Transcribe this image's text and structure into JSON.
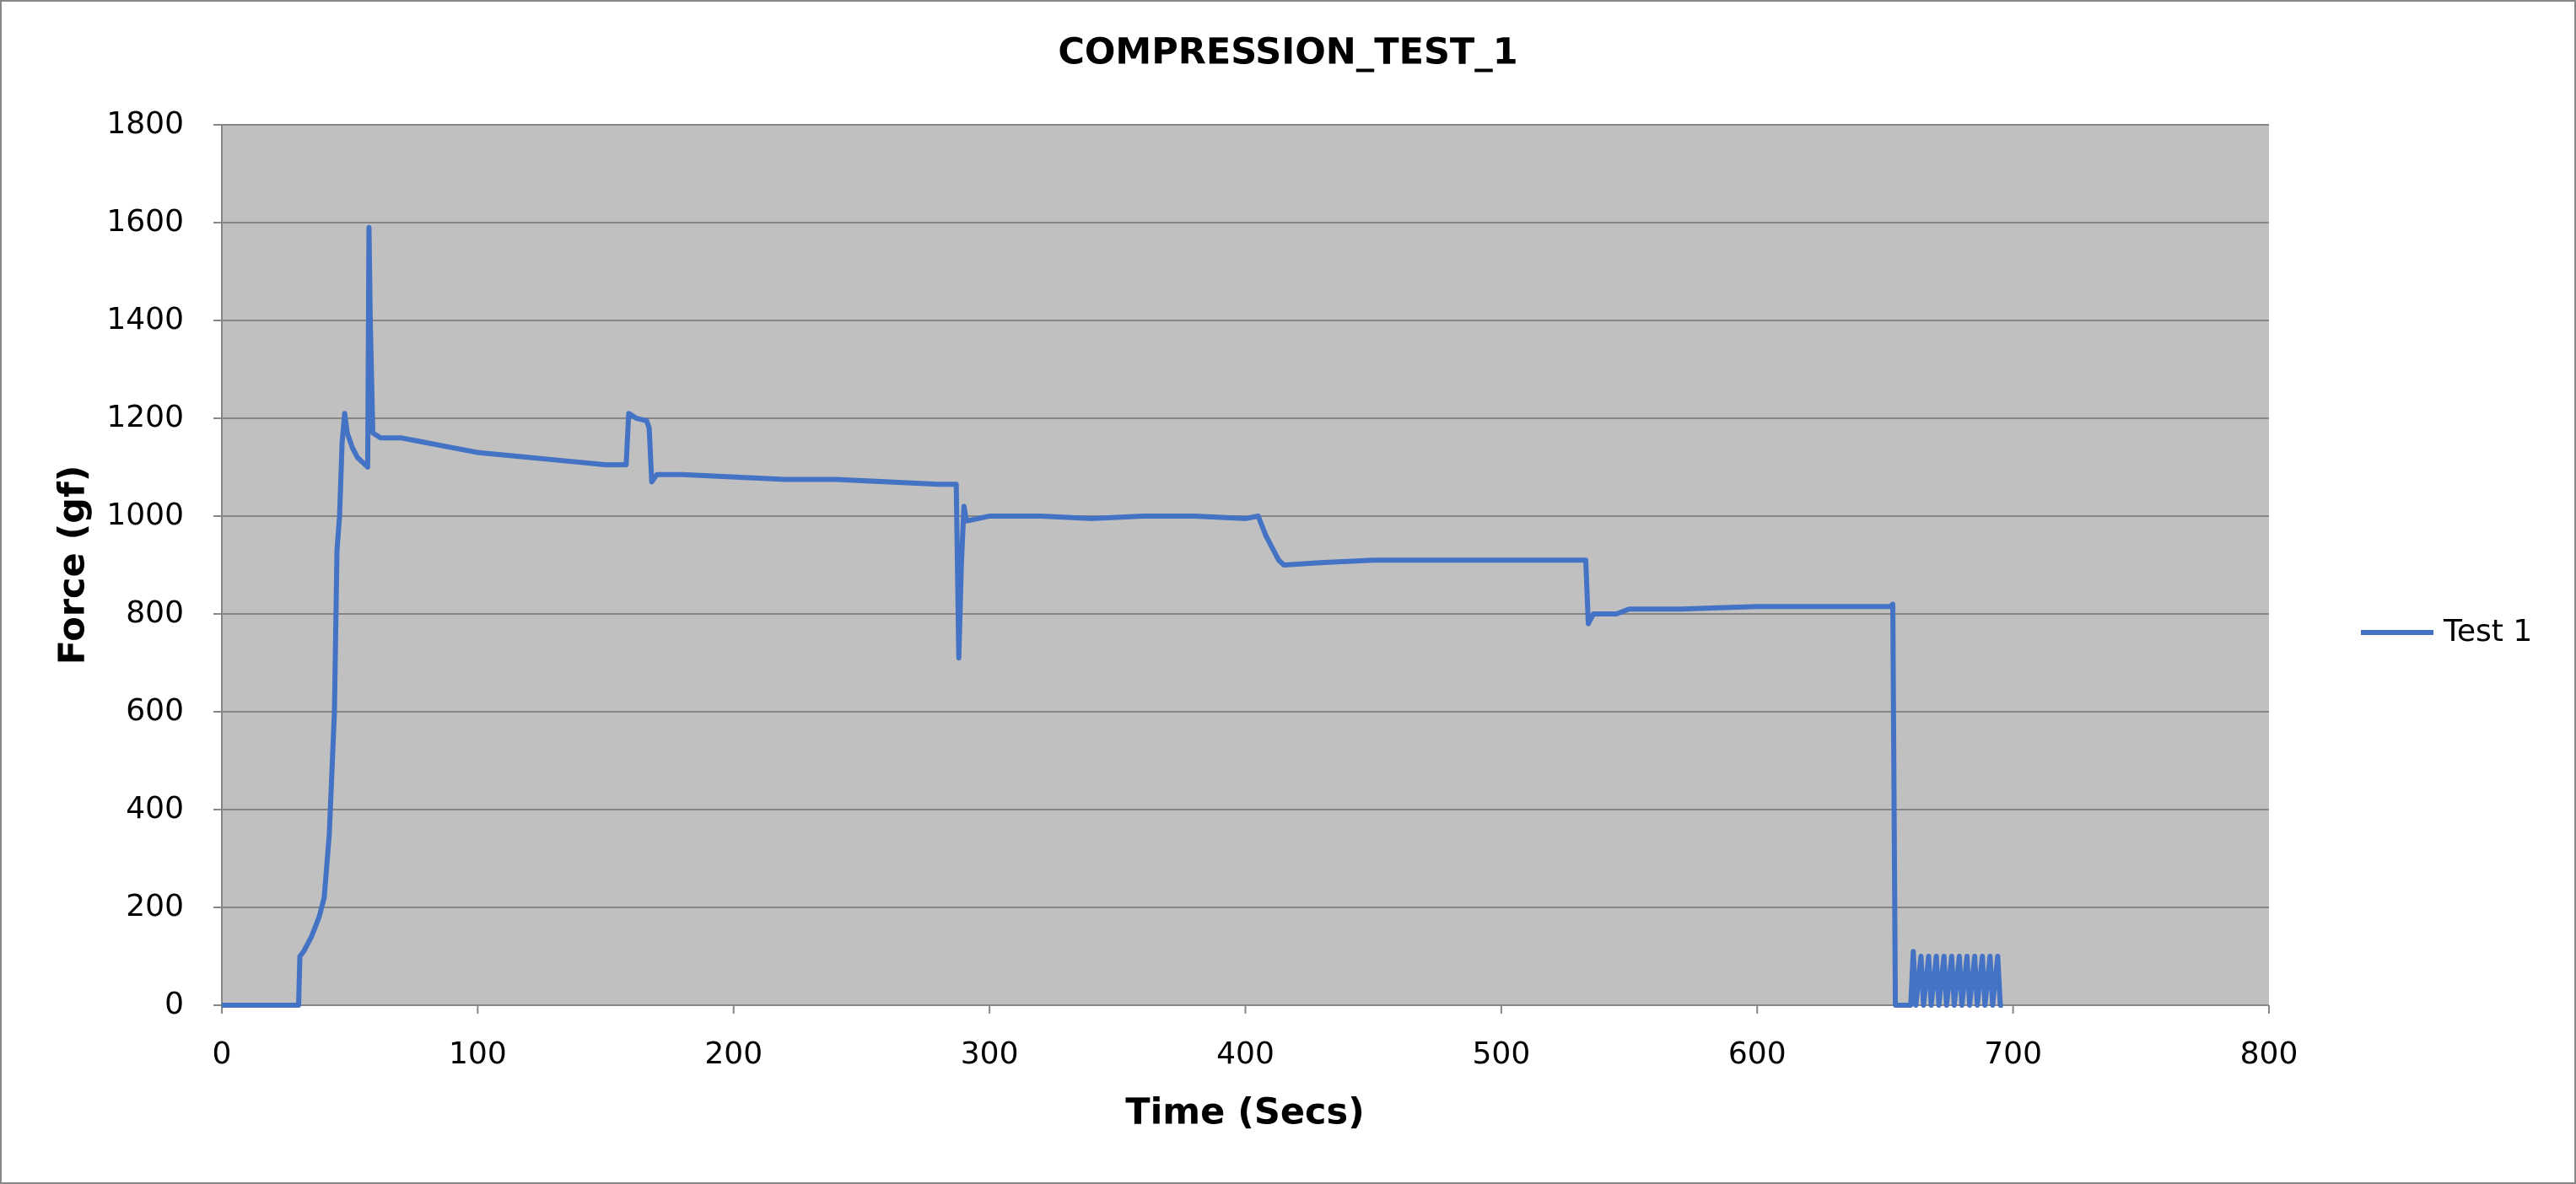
{
  "chart_data": {
    "type": "line",
    "title": "COMPRESSION_TEST_1",
    "x_label": "Time (Secs)",
    "y_label": "Force (gf)",
    "x": [
      0,
      30,
      30.5,
      32,
      35,
      38,
      40,
      42,
      44,
      45,
      46,
      47,
      48,
      49,
      51,
      53,
      55,
      57,
      57.5,
      58,
      59,
      62,
      70,
      80,
      90,
      100,
      110,
      120,
      130,
      140,
      150,
      158,
      159,
      162,
      166,
      167,
      168,
      170,
      180,
      200,
      220,
      240,
      260,
      280,
      287,
      288,
      289,
      290,
      291,
      300,
      320,
      340,
      360,
      380,
      400,
      405,
      408,
      410,
      413,
      415,
      430,
      450,
      470,
      490,
      510,
      530,
      533,
      534,
      536,
      545,
      550,
      570,
      600,
      620,
      640,
      652,
      653,
      654,
      660,
      661,
      662,
      664,
      665,
      667,
      668,
      670,
      671,
      673,
      674,
      676,
      677,
      679,
      680,
      682,
      683,
      685,
      686,
      688,
      689,
      691,
      692,
      694,
      695,
      696
    ],
    "series": [
      {
        "name": "Test 1",
        "color": "#4472c4",
        "values": [
          0,
          0,
          100,
          110,
          140,
          180,
          220,
          350,
          600,
          930,
          1000,
          1150,
          1210,
          1170,
          1140,
          1120,
          1110,
          1100,
          1590,
          1400,
          1170,
          1160,
          1160,
          1150,
          1140,
          1130,
          1125,
          1120,
          1115,
          1110,
          1105,
          1105,
          1210,
          1200,
          1195,
          1180,
          1070,
          1085,
          1085,
          1080,
          1075,
          1075,
          1070,
          1065,
          1065,
          710,
          900,
          1020,
          990,
          1000,
          1000,
          995,
          1000,
          1000,
          995,
          1000,
          960,
          940,
          910,
          900,
          905,
          910,
          910,
          910,
          910,
          910,
          910,
          780,
          800,
          800,
          810,
          810,
          815,
          815,
          815,
          815,
          820,
          0,
          0,
          110,
          0,
          100,
          0,
          100,
          0,
          100,
          0,
          100,
          0,
          100,
          0,
          100,
          0,
          100,
          0,
          100,
          0,
          100,
          0,
          100,
          0,
          100,
          0,
          0
        ]
      }
    ],
    "xlim": [
      0,
      800
    ],
    "xticks": [
      0,
      100,
      200,
      300,
      400,
      500,
      600,
      700,
      800
    ],
    "ylim": [
      0,
      1800
    ],
    "yticks": [
      0,
      200,
      400,
      600,
      800,
      1000,
      1200,
      1400,
      1600,
      1800
    ],
    "grid": true,
    "legend": "right"
  }
}
